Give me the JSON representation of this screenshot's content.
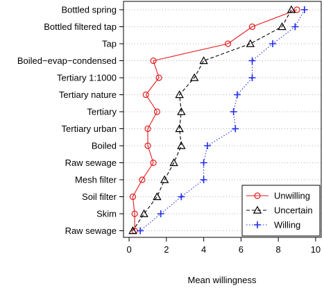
{
  "chart_data": {
    "type": "line",
    "title": "",
    "xlabel": "Mean willingness",
    "ylabel": "",
    "xlim": [
      -0.3,
      10.3
    ],
    "xticks": [
      0,
      2,
      4,
      6,
      8,
      10
    ],
    "categories": [
      "Bottled spring",
      "Bottled filtered tap",
      "Tap",
      "Boiled−evap−condensed",
      "Tertiary 1:1000",
      "Tertiary nature",
      "Tertiary",
      "Tertiary urban",
      "Boiled",
      "Raw sewage",
      "Mesh filter",
      "Soil filter",
      "Skim",
      "Raw sewage"
    ],
    "series": [
      {
        "name": "Unwilling",
        "color": "#e31a1c",
        "marker": "circle",
        "dash": "solid",
        "values": [
          9.0,
          6.6,
          5.3,
          1.3,
          1.6,
          0.9,
          1.5,
          1.0,
          1.0,
          1.3,
          0.7,
          0.2,
          0.3,
          0.3
        ]
      },
      {
        "name": "Uncertain",
        "color": "#000000",
        "marker": "triangle",
        "dash": "dashed",
        "values": [
          8.7,
          8.2,
          6.5,
          4.0,
          3.5,
          2.7,
          2.8,
          2.7,
          2.8,
          2.4,
          1.9,
          1.5,
          0.8,
          0.2
        ]
      },
      {
        "name": "Willing",
        "color": "#1f2be6",
        "marker": "plus",
        "dash": "dotted",
        "values": [
          9.4,
          8.9,
          7.7,
          6.6,
          6.6,
          5.8,
          5.6,
          5.7,
          4.2,
          4.0,
          4.0,
          2.8,
          1.7,
          0.6
        ]
      }
    ],
    "grid": {
      "horizontal_dotted": true
    },
    "legend": {
      "position": "bottom-right",
      "boxed": true
    }
  }
}
